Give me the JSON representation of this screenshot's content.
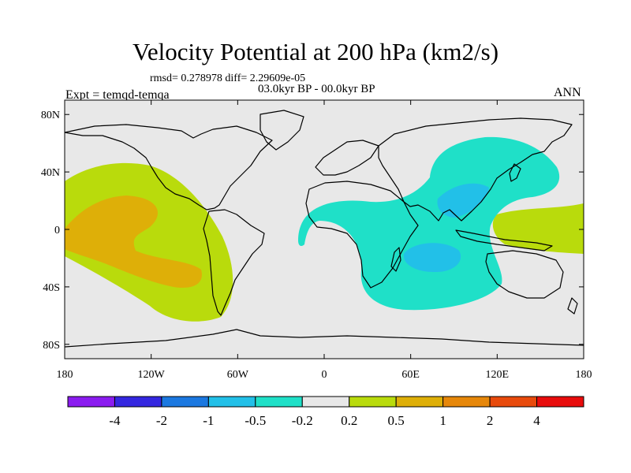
{
  "title": "Velocity Potential at 200 hPa (km2/s)",
  "stats": "rmsd= 0.278978 diff= 2.29609e-05",
  "period": "03.0kyr BP - 00.0kyr BP",
  "experiment": "Expt = temqd-temqa",
  "season": "ANN",
  "axes": {
    "lon_labels": [
      "180",
      "120W",
      "60W",
      "0",
      "60E",
      "120E",
      "180"
    ],
    "lat_labels": [
      "80N",
      "40N",
      "0",
      "40S",
      "80S"
    ]
  },
  "colorbar": {
    "colors": [
      "#8b1cf0",
      "#3427e0",
      "#1b78e0",
      "#22c0e8",
      "#1fe0c8",
      "#e8e8e8",
      "#b9db0c",
      "#deaf08",
      "#e6870a",
      "#e84a0c",
      "#e80c0c"
    ],
    "labels": [
      "-4",
      "-2",
      "-1",
      "-0.5",
      "-0.2",
      "0.2",
      "0.5",
      "1",
      "2",
      "4"
    ]
  },
  "field_colors": {
    "background": "#e8e8e8",
    "pos_weak": "#b9db0c",
    "pos_mid": "#deaf08",
    "neg_weak": "#1fe0c8",
    "neg_mid": "#22c0e8"
  }
}
